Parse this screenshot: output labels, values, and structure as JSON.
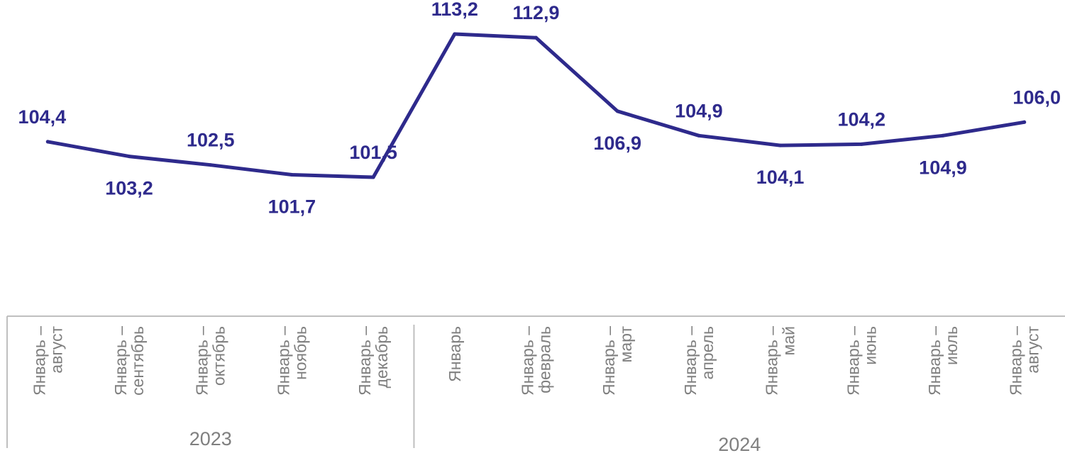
{
  "chart_data": {
    "type": "line",
    "color": "#2e2a8c",
    "axis_color": "#bfbfbf",
    "grid": false,
    "legend": "none",
    "x": [
      {
        "line1": "Январь –",
        "line2": "август",
        "group": "2023"
      },
      {
        "line1": "Январь –",
        "line2": "сентябрь",
        "group": "2023"
      },
      {
        "line1": "Январь –",
        "line2": "октябрь",
        "group": "2023"
      },
      {
        "line1": "Январь –",
        "line2": "ноябрь",
        "group": "2023"
      },
      {
        "line1": "Январь –",
        "line2": "декабрь",
        "group": "2023"
      },
      {
        "line1": "Январь",
        "line2": "",
        "group": "2024"
      },
      {
        "line1": "Январь –",
        "line2": "февраль",
        "group": "2024"
      },
      {
        "line1": "Январь –",
        "line2": "март",
        "group": "2024"
      },
      {
        "line1": "Январь –",
        "line2": "апрель",
        "group": "2024"
      },
      {
        "line1": "Январь –",
        "line2": "май",
        "group": "2024"
      },
      {
        "line1": "Январь –",
        "line2": "июнь",
        "group": "2024"
      },
      {
        "line1": "Январь –",
        "line2": "июль",
        "group": "2024"
      },
      {
        "line1": "Январь –",
        "line2": "август",
        "group": "2024"
      }
    ],
    "groups": [
      "2023",
      "2024"
    ],
    "values": [
      104.4,
      103.2,
      102.5,
      101.7,
      101.5,
      113.2,
      112.9,
      106.9,
      104.9,
      104.1,
      104.2,
      104.9,
      106.0
    ],
    "labels": [
      "104,4",
      "103,2",
      "102,5",
      "101,7",
      "101,5",
      "113,2",
      "112,9",
      "106,9",
      "104,9",
      "104,1",
      "104,2",
      "104,9",
      "106,0"
    ],
    "label_positions": [
      "above",
      "below",
      "above",
      "below",
      "above",
      "above",
      "above",
      "below",
      "above",
      "below",
      "above",
      "below",
      "above"
    ],
    "ylim": [
      96,
      114
    ],
    "title": "",
    "xlabel": "",
    "ylabel": ""
  }
}
